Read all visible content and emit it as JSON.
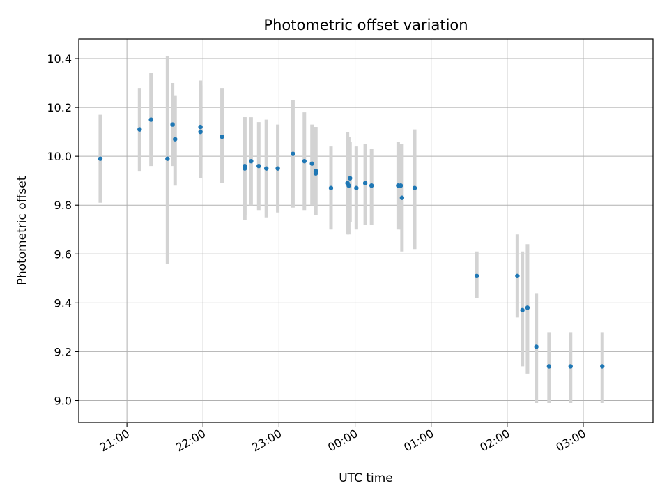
{
  "chart_data": {
    "type": "scatter",
    "title": "Photometric offset variation",
    "xlabel": "UTC time",
    "ylabel": "Photometric offset",
    "x_is_time": true,
    "x_reference_date": "2000-01-01",
    "xlim": [
      "20:22",
      "03:55"
    ],
    "ylim": [
      8.91,
      10.48
    ],
    "xticks": [
      "21:00",
      "22:00",
      "23:00",
      "00:00",
      "01:00",
      "02:00",
      "03:00"
    ],
    "yticks": [
      "9.0",
      "9.2",
      "9.4",
      "9.6",
      "9.8",
      "10.0",
      "10.2",
      "10.4"
    ],
    "grid": true,
    "legend": "none",
    "colors": {
      "point": "#1f77b4",
      "errorbar": "#d3d3d3",
      "grid": "#b0b0b0",
      "axes": "#000000"
    },
    "series": [
      {
        "points": [
          {
            "x": "20:39",
            "y": 9.99,
            "ylow": 9.81,
            "yhigh": 10.17
          },
          {
            "x": "21:10",
            "y": 10.11,
            "ylow": 9.94,
            "yhigh": 10.28
          },
          {
            "x": "21:19",
            "y": 10.15,
            "ylow": 9.96,
            "yhigh": 10.34
          },
          {
            "x": "21:32",
            "y": 9.99,
            "ylow": 9.56,
            "yhigh": 10.41
          },
          {
            "x": "21:36",
            "y": 10.13,
            "ylow": 9.96,
            "yhigh": 10.3
          },
          {
            "x": "21:38",
            "y": 10.07,
            "ylow": 9.88,
            "yhigh": 10.25
          },
          {
            "x": "21:58",
            "y": 10.1,
            "ylow": 9.91,
            "yhigh": 10.29
          },
          {
            "x": "21:58",
            "y": 10.12,
            "ylow": 9.93,
            "yhigh": 10.31
          },
          {
            "x": "22:15",
            "y": 10.08,
            "ylow": 9.89,
            "yhigh": 10.28
          },
          {
            "x": "22:33",
            "y": 9.96,
            "ylow": 9.76,
            "yhigh": 10.16
          },
          {
            "x": "22:33",
            "y": 9.95,
            "ylow": 9.74,
            "yhigh": 10.16
          },
          {
            "x": "22:38",
            "y": 9.98,
            "ylow": 9.8,
            "yhigh": 10.16
          },
          {
            "x": "22:44",
            "y": 9.96,
            "ylow": 9.78,
            "yhigh": 10.14
          },
          {
            "x": "22:50",
            "y": 9.95,
            "ylow": 9.75,
            "yhigh": 10.15
          },
          {
            "x": "22:59",
            "y": 9.95,
            "ylow": 9.77,
            "yhigh": 10.13
          },
          {
            "x": "23:11",
            "y": 10.01,
            "ylow": 9.79,
            "yhigh": 10.23
          },
          {
            "x": "23:20",
            "y": 9.98,
            "ylow": 9.78,
            "yhigh": 10.18
          },
          {
            "x": "23:26",
            "y": 9.97,
            "ylow": 9.8,
            "yhigh": 10.13
          },
          {
            "x": "23:29",
            "y": 9.94,
            "ylow": 9.76,
            "yhigh": 10.12
          },
          {
            "x": "23:29",
            "y": 9.93,
            "ylow": 9.76,
            "yhigh": 10.12
          },
          {
            "x": "23:41",
            "y": 9.87,
            "ylow": 9.7,
            "yhigh": 10.04
          },
          {
            "x": "23:54",
            "y": 9.89,
            "ylow": 9.68,
            "yhigh": 10.1
          },
          {
            "x": "23:55",
            "y": 9.88,
            "ylow": 9.68,
            "yhigh": 10.08
          },
          {
            "x": "23:56",
            "y": 9.91,
            "ylow": 9.73,
            "yhigh": 10.06
          },
          {
            "x": "00:01",
            "y": 9.87,
            "ylow": 9.7,
            "yhigh": 10.04
          },
          {
            "x": "00:08",
            "y": 9.89,
            "ylow": 9.72,
            "yhigh": 10.05
          },
          {
            "x": "00:13",
            "y": 9.88,
            "ylow": 9.72,
            "yhigh": 10.03
          },
          {
            "x": "00:34",
            "y": 9.88,
            "ylow": 9.7,
            "yhigh": 10.06
          },
          {
            "x": "00:36",
            "y": 9.88,
            "ylow": 9.7,
            "yhigh": 10.05
          },
          {
            "x": "00:37",
            "y": 9.83,
            "ylow": 9.61,
            "yhigh": 10.05
          },
          {
            "x": "00:47",
            "y": 9.87,
            "ylow": 9.62,
            "yhigh": 10.11
          },
          {
            "x": "01:36",
            "y": 9.51,
            "ylow": 9.42,
            "yhigh": 9.61
          },
          {
            "x": "02:08",
            "y": 9.51,
            "ylow": 9.34,
            "yhigh": 9.68
          },
          {
            "x": "02:12",
            "y": 9.37,
            "ylow": 9.14,
            "yhigh": 9.61
          },
          {
            "x": "02:16",
            "y": 9.38,
            "ylow": 9.11,
            "yhigh": 9.64
          },
          {
            "x": "02:23",
            "y": 9.22,
            "ylow": 8.99,
            "yhigh": 9.44
          },
          {
            "x": "02:33",
            "y": 9.14,
            "ylow": 8.99,
            "yhigh": 9.28
          },
          {
            "x": "02:50",
            "y": 9.14,
            "ylow": 8.99,
            "yhigh": 9.28
          },
          {
            "x": "03:15",
            "y": 9.14,
            "ylow": 8.99,
            "yhigh": 9.28
          }
        ]
      }
    ]
  }
}
